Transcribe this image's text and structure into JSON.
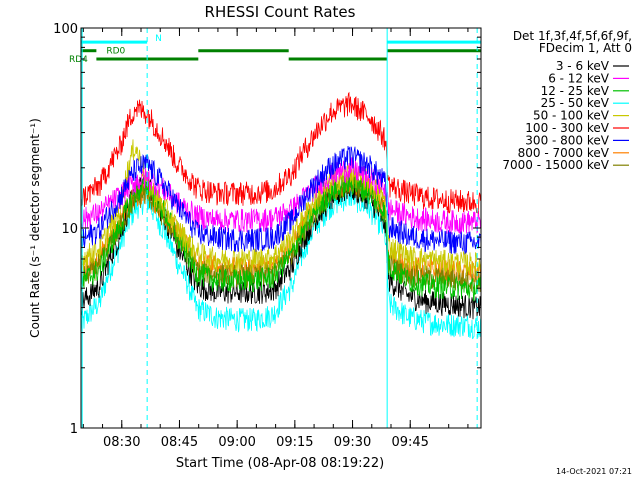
{
  "chart_data": {
    "type": "line",
    "title": "RHESSI Count Rates",
    "xlabel": "Start Time (08-Apr-08 08:19:22)",
    "ylabel": "Count Rate (s⁻¹ detector segment⁻¹)",
    "x_unit": "minutes after 08:19:22",
    "xlim": [
      0,
      104
    ],
    "x_ticks": [
      {
        "value": 10.6,
        "label": "08:30"
      },
      {
        "value": 25.6,
        "label": "08:45"
      },
      {
        "value": 40.6,
        "label": "09:00"
      },
      {
        "value": 55.6,
        "label": "09:15"
      },
      {
        "value": 70.6,
        "label": "09:30"
      },
      {
        "value": 85.6,
        "label": "09:45"
      }
    ],
    "y_scale": "log",
    "ylim": [
      1,
      100
    ],
    "y_ticks": [
      {
        "value": 1,
        "label": "1"
      },
      {
        "value": 10,
        "label": "10"
      },
      {
        "value": 100,
        "label": "100"
      }
    ],
    "legend": {
      "placement": "right",
      "header": [
        "Det 1f,3f,4f,5f,6f,9f,",
        "FDecim 1, Att 0"
      ]
    },
    "x": [
      0,
      5,
      10,
      14,
      17,
      20,
      25,
      30,
      35,
      40,
      45,
      50,
      55,
      60,
      65,
      70,
      75,
      79,
      80,
      85,
      90,
      95,
      100,
      104
    ],
    "series": [
      {
        "name": "3 - 6 keV",
        "color": "#000000",
        "values": [
          4.2,
          5.2,
          9,
          15,
          17,
          13,
          8,
          5.2,
          4.8,
          4.8,
          4.8,
          4.9,
          6.5,
          10.5,
          14,
          16,
          14,
          10.5,
          5.5,
          4.6,
          4.3,
          4.2,
          4.1,
          4.0
        ]
      },
      {
        "name": "6 - 12 keV",
        "color": "#ff00ff",
        "values": [
          11,
          12,
          14.5,
          17,
          18,
          16.5,
          13.5,
          11.5,
          11,
          11,
          11,
          11.2,
          12.5,
          15.5,
          18.5,
          20,
          18,
          16,
          12.5,
          11.5,
          11,
          10.8,
          10.8,
          10.7
        ]
      },
      {
        "name": "12 - 25 keV",
        "color": "#00c000",
        "values": [
          5.3,
          6.3,
          10,
          15,
          16.5,
          13.5,
          9,
          6,
          5.5,
          5.5,
          5.5,
          5.7,
          7.5,
          11.5,
          15,
          17,
          15,
          12,
          6.5,
          5.5,
          5.2,
          5.1,
          5.0,
          5.0
        ]
      },
      {
        "name": "25 - 50 keV",
        "color": "#00ffff",
        "values": [
          3.3,
          4.3,
          8,
          12.5,
          14,
          11,
          6.8,
          4,
          3.6,
          3.5,
          3.5,
          3.7,
          5.2,
          9.5,
          13,
          14.5,
          12.5,
          9.5,
          4.2,
          3.6,
          3.4,
          3.3,
          3.3,
          3.2
        ]
      },
      {
        "name": "50 - 100 keV",
        "color": "#c8c800",
        "values": [
          7,
          8,
          12,
          26,
          17,
          14,
          10,
          7.5,
          7,
          7,
          7,
          7.2,
          9,
          13,
          17,
          19,
          17,
          14,
          8.2,
          7.2,
          7,
          6.8,
          6.7,
          6.6
        ]
      },
      {
        "name": "100 - 300 keV",
        "color": "#ff0000",
        "values": [
          14,
          16.5,
          25,
          40,
          38,
          31,
          21,
          16,
          15,
          15,
          15,
          15.5,
          19,
          28,
          38,
          42,
          36,
          28,
          16.5,
          15,
          14.2,
          13.8,
          13.6,
          13.5
        ]
      },
      {
        "name": "300 - 800 keV",
        "color": "#0000ff",
        "values": [
          8.5,
          10,
          14,
          19.5,
          21,
          18,
          13,
          9.5,
          9,
          8.8,
          8.8,
          9,
          11,
          16,
          20.5,
          23,
          20.5,
          17,
          10.2,
          9.2,
          8.8,
          8.6,
          8.5,
          8.4
        ]
      },
      {
        "name": "800 - 7000 keV",
        "color": "#ff8000",
        "values": [
          6.2,
          7.2,
          10.5,
          14.5,
          15.5,
          13,
          9.5,
          6.8,
          6.4,
          6.3,
          6.3,
          6.5,
          8.2,
          12,
          15.5,
          17.5,
          15.5,
          12.5,
          7.2,
          6.4,
          6.2,
          6.1,
          6.0,
          6.0
        ]
      },
      {
        "name": "7000 - 15000 keV",
        "color": "#808000",
        "values": [
          5.6,
          6.6,
          10,
          14,
          15,
          12.5,
          9,
          6.3,
          5.9,
          5.8,
          5.8,
          6,
          7.7,
          11.5,
          15,
          17,
          15,
          12,
          6.6,
          5.9,
          5.7,
          5.6,
          5.5,
          5.5
        ]
      }
    ],
    "annotations": {
      "flags": [
        {
          "label": "N",
          "color": "#00ffff",
          "y": 85,
          "segments": [
            [
              0,
              17.2
            ],
            [
              79.6,
              104
            ]
          ]
        },
        {
          "label": "RD0",
          "color": "#008000",
          "y": 77,
          "segments": [
            [
              0,
              4
            ],
            [
              30.5,
              54
            ],
            [
              79.6,
              104
            ]
          ]
        },
        {
          "label": "RD4",
          "color": "#008000",
          "y": 70,
          "segments": [
            [
              4,
              30.5
            ],
            [
              54,
              79.6
            ]
          ]
        }
      ],
      "vlines": [
        {
          "x": 0.3,
          "color": "#00ffff",
          "style": "solid"
        },
        {
          "x": 17.2,
          "color": "#00ffff",
          "style": "dashed"
        },
        {
          "x": 79.6,
          "color": "#00ffff",
          "style": "solid"
        },
        {
          "x": 103,
          "color": "#00ffff",
          "style": "dashed"
        }
      ]
    },
    "timestamp": "14-Oct-2021 07:21"
  }
}
